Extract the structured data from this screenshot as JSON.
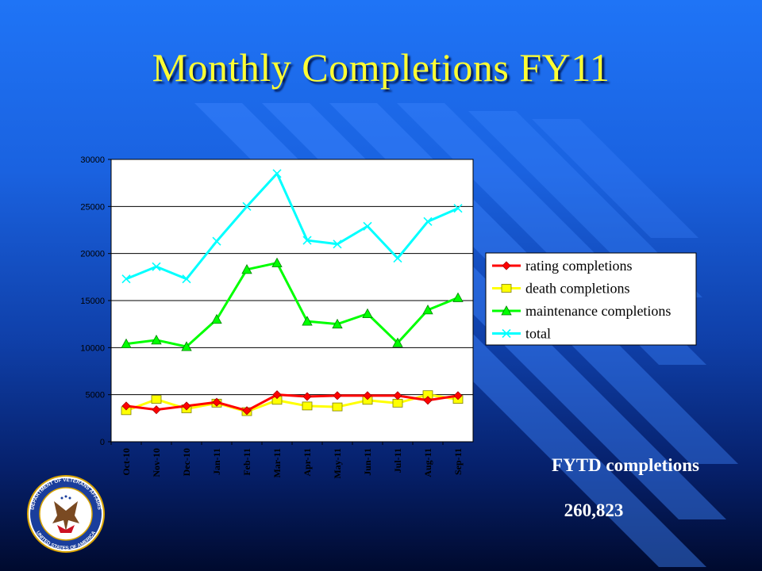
{
  "slide": {
    "title": "Monthly Completions FY11",
    "summary_label": "FYTD completions",
    "summary_value": "260,823"
  },
  "seal": {
    "top_text": "DEPARTMENT OF VETERANS AFFAIRS",
    "bottom_text": "UNITED STATES OF AMERICA"
  },
  "colors": {
    "title": "#ffff33",
    "rating": "#ff0000",
    "death": "#ffff00",
    "maintenance": "#00ff00",
    "total": "#00ffff"
  },
  "chart_data": {
    "type": "line",
    "categories": [
      "Oct-10",
      "Nov-10",
      "Dec-10",
      "Jan-11",
      "Feb-11",
      "Mar-11",
      "Apr-11",
      "May-11",
      "Jun-11",
      "Jul-11",
      "Aug-11",
      "Sep-11"
    ],
    "ylim": [
      0,
      30000
    ],
    "yticks": [
      0,
      5000,
      10000,
      15000,
      20000,
      25000,
      30000
    ],
    "legend_position": "right",
    "grid": "horizontal",
    "series": [
      {
        "name": "rating completions",
        "color": "#ff0000",
        "marker": "diamond",
        "values": [
          3800,
          3400,
          3800,
          4200,
          3300,
          5000,
          4800,
          4900,
          4900,
          4900,
          4400,
          4900
        ]
      },
      {
        "name": "death completions",
        "color": "#ffff00",
        "marker": "square",
        "values": [
          3300,
          4500,
          3500,
          4100,
          3200,
          4400,
          3800,
          3700,
          4400,
          4100,
          5000,
          4500
        ]
      },
      {
        "name": "maintenance completions",
        "color": "#00ff00",
        "marker": "triangle",
        "values": [
          10400,
          10800,
          10100,
          13000,
          18300,
          19000,
          12800,
          12500,
          13600,
          10500,
          14000,
          15300
        ]
      },
      {
        "name": "total",
        "color": "#00ffff",
        "marker": "x",
        "values": [
          17300,
          18600,
          17300,
          21300,
          25000,
          28500,
          21400,
          21000,
          22900,
          19500,
          23400,
          24800
        ]
      }
    ]
  }
}
